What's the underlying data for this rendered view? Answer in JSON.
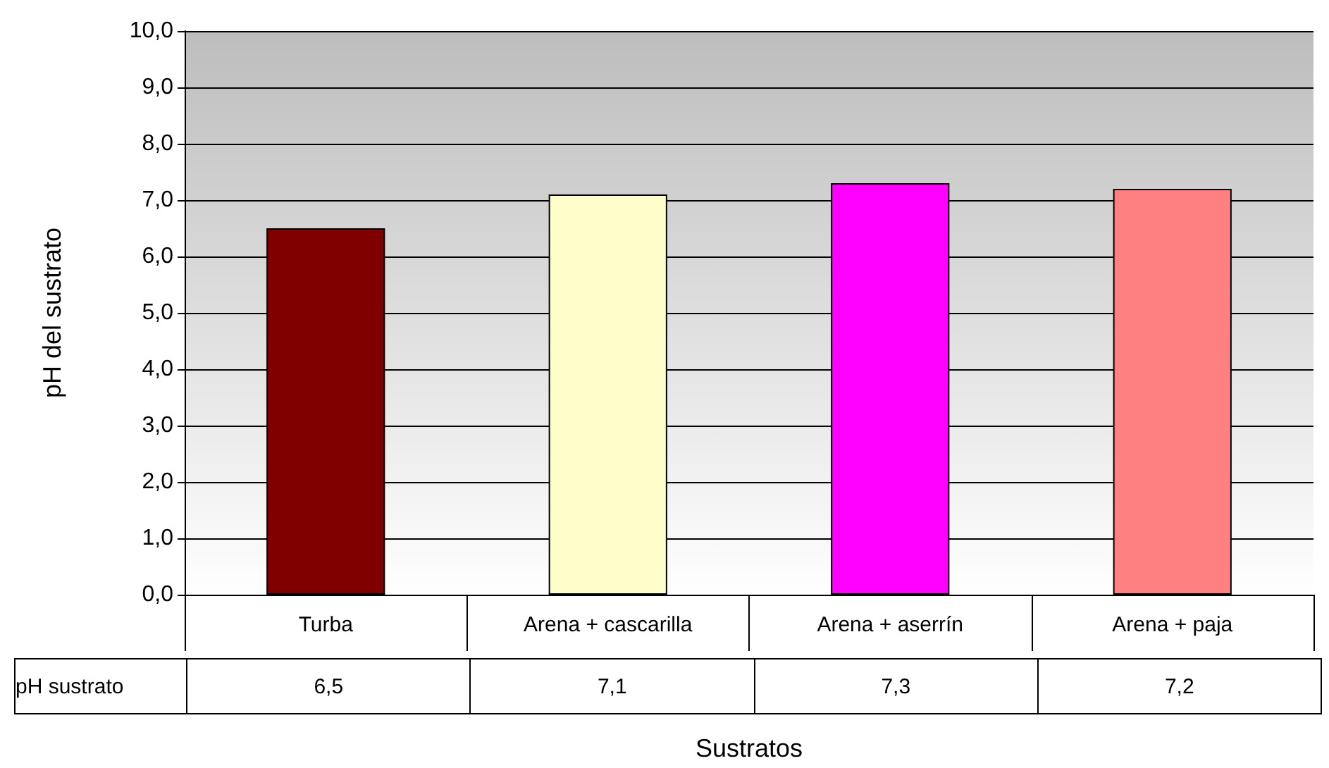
{
  "chart_data": {
    "type": "bar",
    "xlabel": "Sustratos",
    "ylabel": "pH del sustrato",
    "categories": [
      "Turba",
      "Arena + cascarilla",
      "Arena + aserrín",
      "Arena + paja"
    ],
    "series": [
      {
        "name": "pH sustrato",
        "values": [
          6.5,
          7.1,
          7.3,
          7.2
        ],
        "colors": [
          "#800000",
          "#ffffcc",
          "#ff00ff",
          "#ff8080"
        ],
        "value_labels": [
          "6,5",
          "7,1",
          "7,3",
          "7,2"
        ]
      }
    ],
    "ylim": [
      0,
      10
    ],
    "yticks": [
      {
        "value": 0,
        "label": "0,0"
      },
      {
        "value": 1,
        "label": "1,0"
      },
      {
        "value": 2,
        "label": "2,0"
      },
      {
        "value": 3,
        "label": "3,0"
      },
      {
        "value": 4,
        "label": "4,0"
      },
      {
        "value": 5,
        "label": "5,0"
      },
      {
        "value": 6,
        "label": "6,0"
      },
      {
        "value": 7,
        "label": "7,0"
      },
      {
        "value": 8,
        "label": "8,0"
      },
      {
        "value": 9,
        "label": "9,0"
      },
      {
        "value": 10,
        "label": "10,0"
      }
    ],
    "grid": "y",
    "legend": false
  }
}
